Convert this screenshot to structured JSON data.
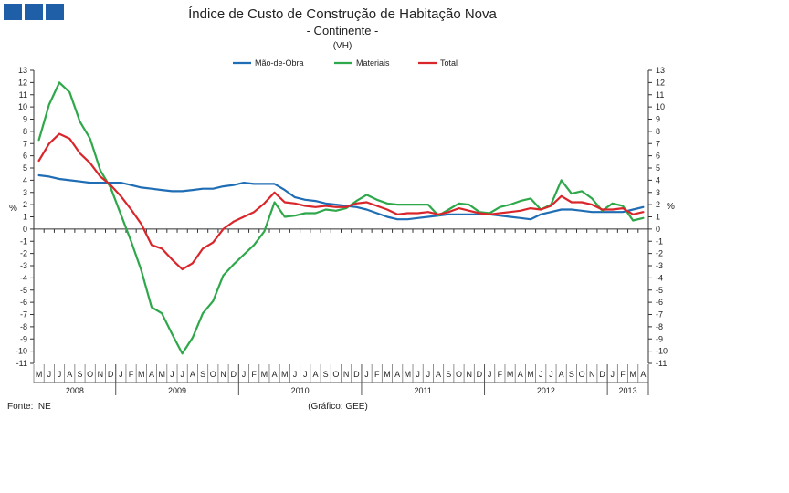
{
  "chart_data": {
    "type": "line",
    "title": "Índice de Custo de Construção de Habitação Nova",
    "subtitle": "- Continente -",
    "unit_note": "(VH)",
    "ylabel_left": "%",
    "ylabel_right": "%",
    "ylim": [
      -11,
      13
    ],
    "yticks": [
      13,
      12,
      11,
      10,
      9,
      8,
      7,
      6,
      5,
      4,
      3,
      2,
      1,
      0,
      -1,
      -2,
      -3,
      -4,
      -5,
      -6,
      -7,
      -8,
      -9,
      -10,
      -11
    ],
    "months": [
      "M",
      "J",
      "J",
      "A",
      "S",
      "O",
      "N",
      "D",
      "J",
      "F",
      "M",
      "A",
      "M",
      "J",
      "J",
      "A",
      "S",
      "O",
      "N",
      "D",
      "J",
      "F",
      "M",
      "A",
      "M",
      "J",
      "J",
      "A",
      "S",
      "O",
      "N",
      "D",
      "J",
      "F",
      "M",
      "A",
      "M",
      "J",
      "J",
      "A",
      "S",
      "O",
      "N",
      "D",
      "J",
      "F",
      "M",
      "A",
      "M",
      "J",
      "J",
      "A",
      "S",
      "O",
      "N",
      "D",
      "J",
      "F",
      "M",
      "A"
    ],
    "years": [
      {
        "label": "2008",
        "start": 0,
        "count": 8
      },
      {
        "label": "2009",
        "start": 8,
        "count": 12
      },
      {
        "label": "2010",
        "start": 20,
        "count": 12
      },
      {
        "label": "2011",
        "start": 32,
        "count": 12
      },
      {
        "label": "2012",
        "start": 44,
        "count": 12
      },
      {
        "label": "2013",
        "start": 56,
        "count": 4
      }
    ],
    "series": [
      {
        "name": "Mão-de-Obra",
        "color": "#1f6db4",
        "values": [
          4.4,
          4.3,
          4.1,
          4.0,
          3.9,
          3.8,
          3.8,
          3.8,
          3.8,
          3.6,
          3.4,
          3.3,
          3.2,
          3.1,
          3.1,
          3.2,
          3.3,
          3.3,
          3.5,
          3.6,
          3.8,
          3.7,
          3.7,
          3.7,
          3.2,
          2.6,
          2.4,
          2.3,
          2.1,
          2.0,
          1.9,
          1.8,
          1.6,
          1.3,
          1.0,
          0.8,
          0.8,
          0.9,
          1.0,
          1.1,
          1.2,
          1.2,
          1.2,
          1.2,
          1.2,
          1.1,
          1.0,
          0.9,
          0.8,
          1.2,
          1.4,
          1.6,
          1.6,
          1.5,
          1.4,
          1.4,
          1.4,
          1.4,
          1.6,
          1.8
        ]
      },
      {
        "name": "Materiais",
        "color": "#2ea84a",
        "values": [
          7.3,
          10.2,
          12.0,
          11.2,
          8.8,
          7.4,
          4.8,
          3.4,
          1.2,
          -1.0,
          -3.4,
          -6.4,
          -6.9,
          -8.6,
          -10.2,
          -8.9,
          -6.9,
          -5.9,
          -3.8,
          -2.9,
          -2.1,
          -1.3,
          -0.2,
          2.2,
          1.0,
          1.1,
          1.3,
          1.3,
          1.6,
          1.5,
          1.7,
          2.3,
          2.8,
          2.4,
          2.1,
          2.0,
          2.0,
          2.0,
          2.0,
          1.1,
          1.6,
          2.1,
          2.0,
          1.4,
          1.3,
          1.8,
          2.0,
          2.3,
          2.5,
          1.6,
          2.0,
          4.0,
          2.9,
          3.1,
          2.5,
          1.5,
          2.1,
          1.9,
          0.7,
          0.9
        ]
      },
      {
        "name": "Total",
        "color": "#d9262b",
        "values": [
          5.6,
          7.0,
          7.8,
          7.4,
          6.2,
          5.4,
          4.3,
          3.6,
          2.7,
          1.6,
          0.4,
          -1.3,
          -1.6,
          -2.5,
          -3.3,
          -2.8,
          -1.6,
          -1.1,
          0.0,
          0.6,
          1.0,
          1.4,
          2.1,
          3.0,
          2.2,
          2.1,
          1.9,
          1.8,
          1.9,
          1.8,
          1.8,
          2.1,
          2.2,
          1.9,
          1.6,
          1.2,
          1.3,
          1.3,
          1.4,
          1.2,
          1.4,
          1.7,
          1.5,
          1.3,
          1.2,
          1.3,
          1.4,
          1.5,
          1.7,
          1.6,
          1.9,
          2.7,
          2.2,
          2.2,
          2.0,
          1.6,
          1.6,
          1.7,
          1.2,
          1.4
        ]
      }
    ]
  },
  "footer": {
    "source": "Fonte: INE",
    "credit": "(Gráfico: GEE)"
  }
}
